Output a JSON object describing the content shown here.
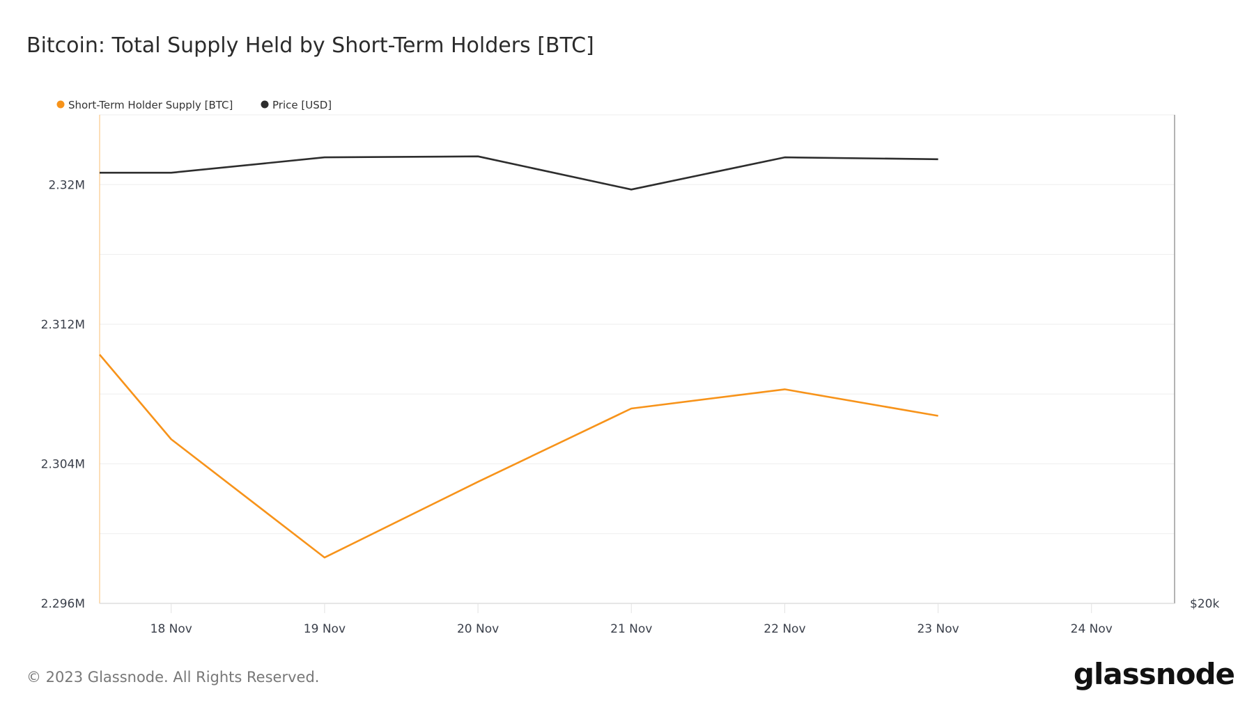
{
  "chart_data": {
    "type": "line",
    "title": "Bitcoin: Total Supply Held by Short-Term Holders [BTC]",
    "x": [
      "2023-11-17T12:48",
      "2023-11-18",
      "2023-11-19",
      "2023-11-20",
      "2023-11-21",
      "2023-11-22",
      "2023-11-23"
    ],
    "xlim": [
      "2023-11-17T12:48",
      "2023-11-24T13:00"
    ],
    "x_ticks": [
      {
        "date": "2023-11-18",
        "label": "18 Nov"
      },
      {
        "date": "2023-11-19",
        "label": "19 Nov"
      },
      {
        "date": "2023-11-20",
        "label": "20 Nov"
      },
      {
        "date": "2023-11-21",
        "label": "21 Nov"
      },
      {
        "date": "2023-11-22",
        "label": "22 Nov"
      },
      {
        "date": "2023-11-23",
        "label": "23 Nov"
      },
      {
        "date": "2023-11-24",
        "label": "24 Nov"
      }
    ],
    "y_left": {
      "ylim": [
        2296000,
        2324000
      ],
      "ticks": [
        {
          "v": 2320000,
          "label": "2.32M"
        },
        {
          "v": 2312000,
          "label": "2.312M"
        },
        {
          "v": 2304000,
          "label": "2.304M"
        },
        {
          "v": 2296000,
          "label": "2.296M"
        }
      ],
      "gridlines_every": 4000
    },
    "y_right": {
      "scale": "log",
      "ylim": [
        20000,
        39700
      ],
      "ticks": [
        {
          "v": 20000,
          "label": "$20k"
        }
      ]
    },
    "grid": true,
    "legend_position": "top-left",
    "series": [
      {
        "name": "Short-Term Holder Supply [BTC]",
        "axis": "left",
        "color": "#f7931a",
        "values": [
          2310260,
          2305410,
          2298630,
          2302970,
          2307170,
          2308270,
          2306750
        ]
      },
      {
        "name": "Price [USD]",
        "axis": "right",
        "color": "#2d2d2d",
        "values": [
          36600,
          36600,
          37400,
          37450,
          35750,
          37400,
          37300
        ]
      }
    ]
  },
  "footer": {
    "copyright": "© 2023 Glassnode. All Rights Reserved.",
    "logo": "glassnode"
  }
}
